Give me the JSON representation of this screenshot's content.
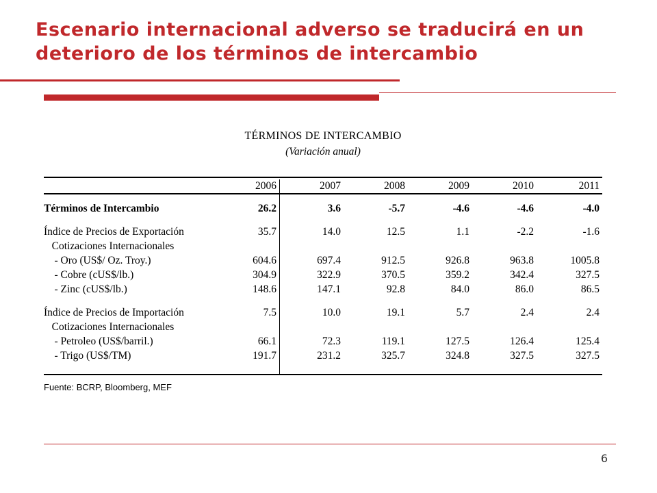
{
  "slide": {
    "title": "Escenario internacional adverso se traducirá en un deterioro de los términos de intercambio",
    "page_number": "6",
    "accent_color": "#c0282b"
  },
  "table": {
    "title": "TÉRMINOS DE INTERCAMBIO",
    "subtitle": "(Variación anual)",
    "columns": [
      "2006",
      "2007",
      "2008",
      "2009",
      "2010",
      "2011"
    ],
    "rows": [
      {
        "label": "Términos de Intercambio",
        "values": [
          "26.2",
          "3.6",
          "-5.7",
          "-4.6",
          "-4.6",
          "-4.0"
        ]
      },
      {
        "label": "Índice de Precios de Exportación",
        "values": [
          "35.7",
          "14.0",
          "12.5",
          "1.1",
          "-2.2",
          "-1.6"
        ]
      },
      {
        "label": "   Cotizaciones Internacionales",
        "values": [
          "",
          "",
          "",
          "",
          "",
          ""
        ]
      },
      {
        "label": "    - Oro (US$/ Oz. Troy.)",
        "values": [
          "604.6",
          "697.4",
          "912.5",
          "926.8",
          "963.8",
          "1005.8"
        ]
      },
      {
        "label": "    - Cobre (cUS$/lb.)",
        "values": [
          "304.9",
          "322.9",
          "370.5",
          "359.2",
          "342.4",
          "327.5"
        ]
      },
      {
        "label": "    - Zinc (cUS$/lb.)",
        "values": [
          "148.6",
          "147.1",
          "92.8",
          "84.0",
          "86.0",
          "86.5"
        ]
      },
      {
        "label": "Índice de Precios de Importación",
        "values": [
          "7.5",
          "10.0",
          "19.1",
          "5.7",
          "2.4",
          "2.4"
        ]
      },
      {
        "label": "   Cotizaciones Internacionales",
        "values": [
          "",
          "",
          "",
          "",
          "",
          ""
        ]
      },
      {
        "label": "    - Petroleo (US$/barril.)",
        "values": [
          "66.1",
          "72.3",
          "119.1",
          "127.5",
          "126.4",
          "125.4"
        ]
      },
      {
        "label": "    - Trigo (US$/TM)",
        "values": [
          "191.7",
          "231.2",
          "325.7",
          "324.8",
          "327.5",
          "327.5"
        ]
      }
    ],
    "source": "Fuente: BCRP, Bloomberg, MEF"
  }
}
